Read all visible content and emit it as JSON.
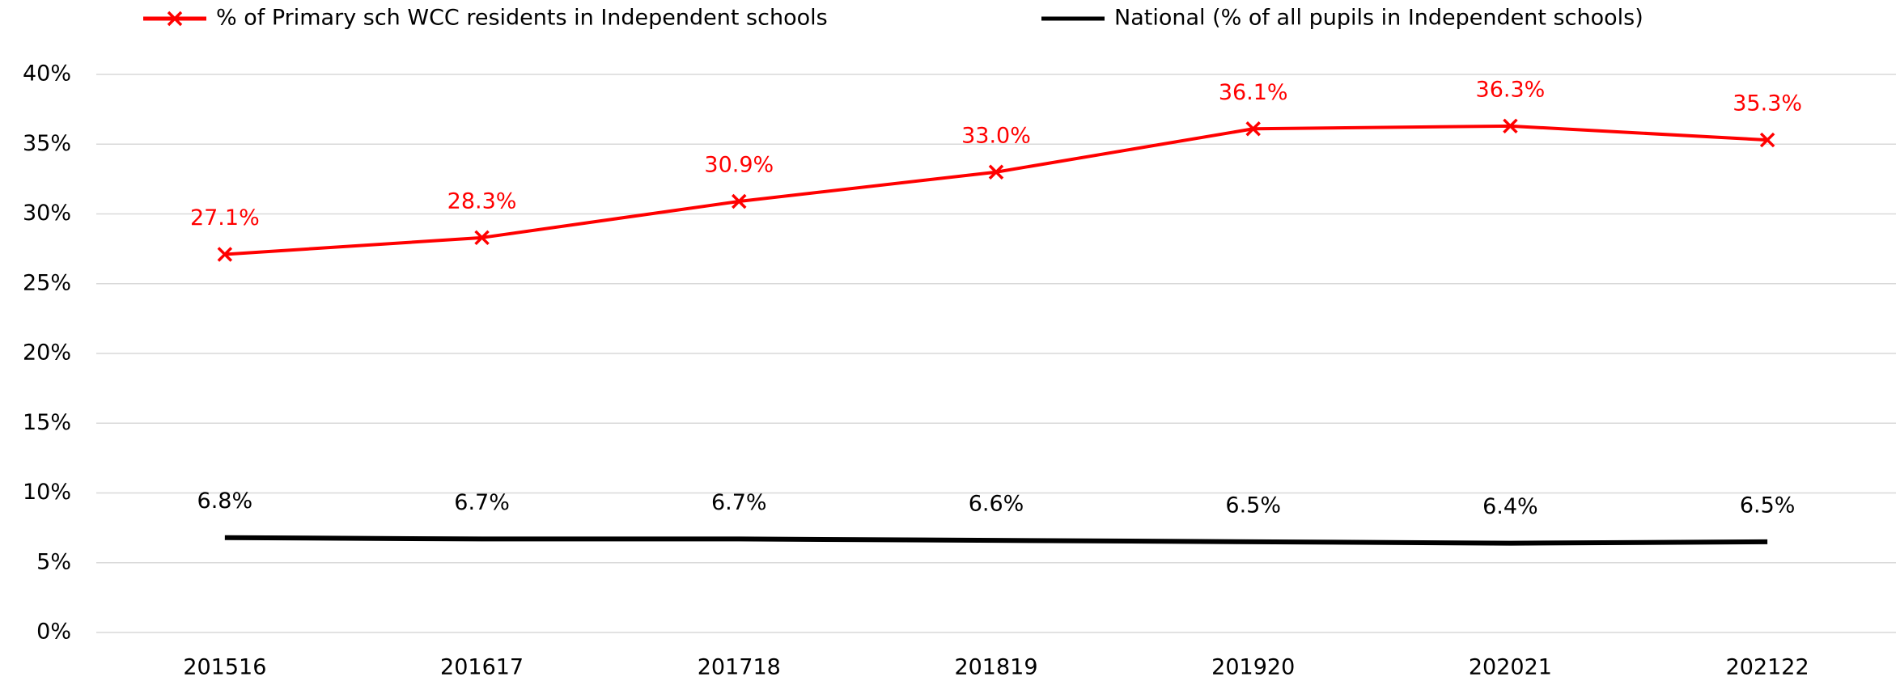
{
  "chart_data": {
    "type": "line",
    "categories": [
      "201516",
      "201617",
      "201718",
      "201819",
      "201920",
      "202021",
      "202122"
    ],
    "series": [
      {
        "name": "% of Primary sch WCC residents in Independent schools",
        "color": "#ff0000",
        "marker": "x",
        "values": [
          27.1,
          28.3,
          30.9,
          33.0,
          36.1,
          36.3,
          35.3
        ],
        "value_labels": [
          "27.1%",
          "28.3%",
          "30.9%",
          "33.0%",
          "36.1%",
          "36.3%",
          "35.3%"
        ]
      },
      {
        "name": "National (% of all pupils in Independent schools)",
        "color": "#000000",
        "values": [
          6.8,
          6.7,
          6.7,
          6.6,
          6.5,
          6.4,
          6.5
        ],
        "value_labels": [
          "6.8%",
          "6.7%",
          "6.7%",
          "6.6%",
          "6.5%",
          "6.4%",
          "6.5%"
        ]
      }
    ],
    "ylim": [
      0,
      40
    ],
    "yticks": [
      {
        "value": 0,
        "label": "0%"
      },
      {
        "value": 5,
        "label": "5%"
      },
      {
        "value": 10,
        "label": "10%"
      },
      {
        "value": 15,
        "label": "15%"
      },
      {
        "value": 20,
        "label": "20%"
      },
      {
        "value": 25,
        "label": "25%"
      },
      {
        "value": 30,
        "label": "30%"
      },
      {
        "value": 35,
        "label": "35%"
      },
      {
        "value": 40,
        "label": "40%"
      }
    ],
    "grid": true,
    "legend": "top"
  }
}
